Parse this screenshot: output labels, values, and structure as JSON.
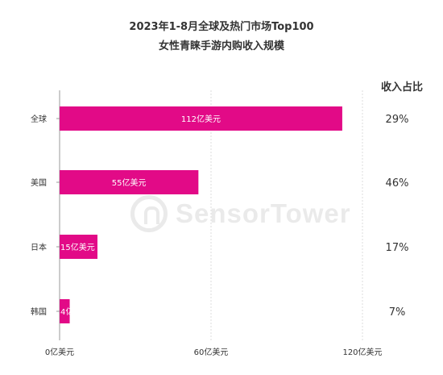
{
  "title": {
    "line1": "2023年1-8月全球及热门市场Top100",
    "line2": "女性青睐手游内购收入规模"
  },
  "share_header": "收入占比",
  "watermark": {
    "text": "SensorTower"
  },
  "colors": {
    "bar": "#E20A87",
    "axis": "#999999",
    "grid": "#dddddd",
    "text": "#333333"
  },
  "chart_data": {
    "type": "bar",
    "orientation": "horizontal",
    "categories": [
      "全球",
      "美国",
      "日本",
      "韩国"
    ],
    "values": [
      112,
      55,
      15,
      4
    ],
    "value_labels": [
      "112亿美元",
      "55亿美元",
      "15亿美元",
      "4亿美元"
    ],
    "share_labels": [
      "29%",
      "46%",
      "17%",
      "7%"
    ],
    "xlim": [
      0,
      120
    ],
    "x_ticks": [
      0,
      60,
      120
    ],
    "x_tick_labels": [
      "0亿美元",
      "60亿美元",
      "120亿美元"
    ],
    "grid": true
  }
}
